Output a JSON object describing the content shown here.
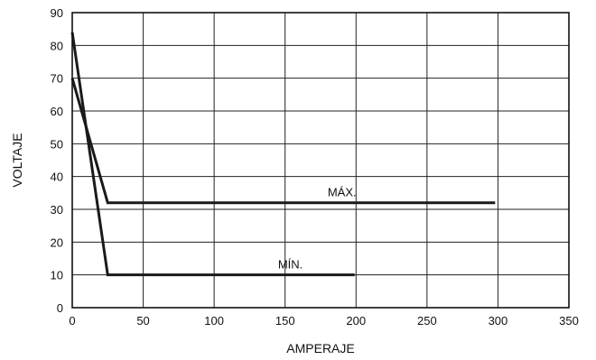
{
  "chart_data": {
    "type": "line",
    "title": "",
    "xlabel": "AMPERAJE",
    "ylabel": "VOLTAJE",
    "xlim": [
      0,
      350
    ],
    "ylim": [
      0,
      90
    ],
    "xticks": [
      0,
      50,
      100,
      150,
      200,
      250,
      300,
      350
    ],
    "yticks": [
      0,
      10,
      20,
      30,
      40,
      50,
      60,
      70,
      80,
      90
    ],
    "grid": {
      "horizontal": true,
      "vertical": true
    },
    "series": [
      {
        "name": "MÁX.",
        "color": "#1a1a1a",
        "points": [
          [
            0,
            70
          ],
          [
            25,
            32
          ],
          [
            298,
            32
          ]
        ],
        "label_at": [
          180,
          32
        ]
      },
      {
        "name": "MÍN.",
        "color": "#1a1a1a",
        "points": [
          [
            0,
            84
          ],
          [
            25,
            10
          ],
          [
            199,
            10
          ]
        ],
        "label_at": [
          145,
          10
        ]
      }
    ]
  }
}
